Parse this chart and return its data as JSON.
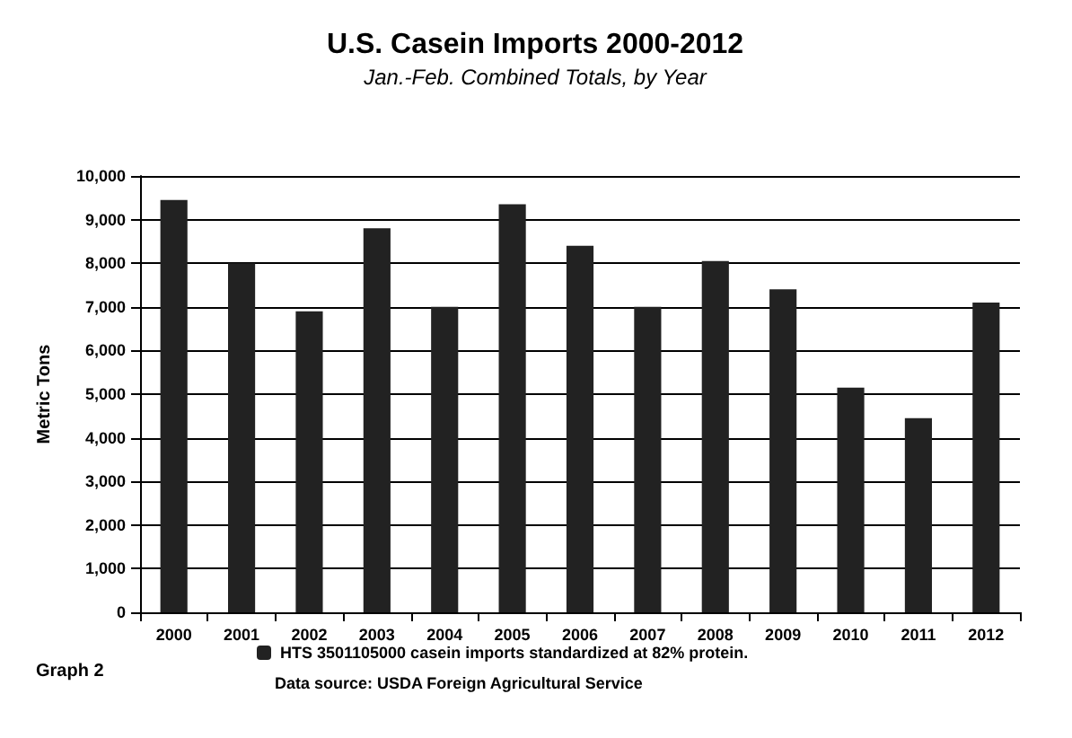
{
  "chart_data": {
    "type": "bar",
    "title": "U.S. Casein Imports 2000-2012",
    "subtitle": "Jan.-Feb. Combined Totals, by Year",
    "ylabel": "Metric Tons",
    "categories": [
      "2000",
      "2001",
      "2002",
      "2003",
      "2004",
      "2005",
      "2006",
      "2007",
      "2008",
      "2009",
      "2010",
      "2011",
      "2012"
    ],
    "series": [
      {
        "name": "HTS 3501105000 casein imports standardized at 82% protein.",
        "color": "#222222",
        "values": [
          9450,
          8000,
          6900,
          8800,
          7000,
          9350,
          8400,
          7000,
          8050,
          7400,
          5150,
          4450,
          7100
        ]
      }
    ],
    "ylim": [
      0,
      10000
    ],
    "yticks": [
      {
        "value": 0,
        "label": "0"
      },
      {
        "value": 1000,
        "label": "1,000"
      },
      {
        "value": 2000,
        "label": "2,000"
      },
      {
        "value": 3000,
        "label": "3,000"
      },
      {
        "value": 4000,
        "label": "4,000"
      },
      {
        "value": 5000,
        "label": "5,000"
      },
      {
        "value": 6000,
        "label": "6,000"
      },
      {
        "value": 7000,
        "label": "7,000"
      },
      {
        "value": 8000,
        "label": "8,000"
      },
      {
        "value": 9000,
        "label": "9,000"
      },
      {
        "value": 10000,
        "label": "10,000"
      }
    ],
    "grid": "y",
    "legend": "bottom",
    "annotations": [
      "Data source: USDA Foreign Agricultural Service",
      "Graph 2"
    ]
  }
}
